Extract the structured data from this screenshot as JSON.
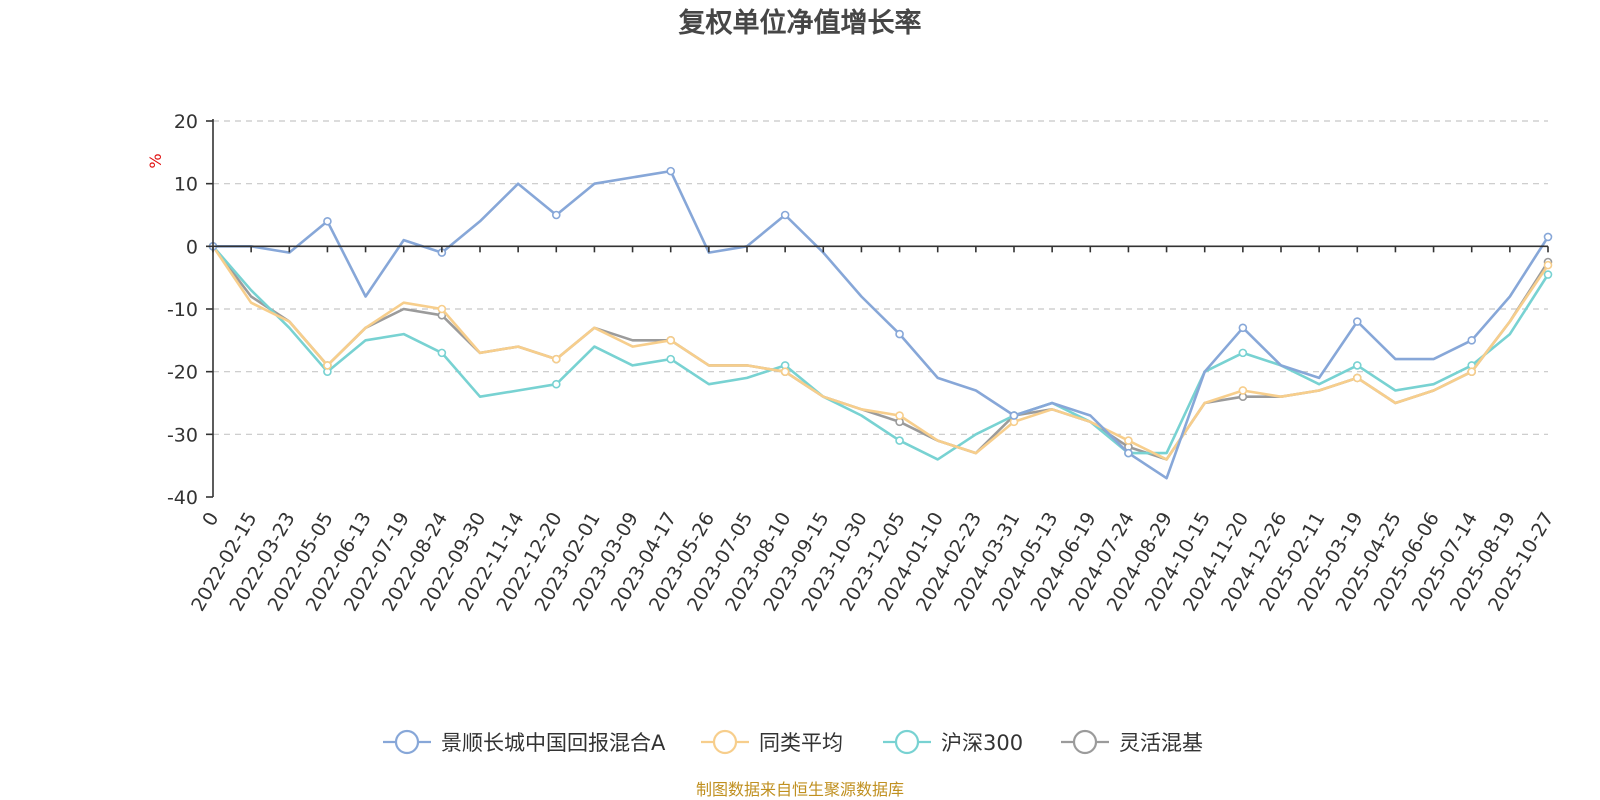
{
  "chart_data": {
    "type": "line",
    "title": "复权单位净值增长率",
    "ylabel": "%",
    "ylim": [
      -40,
      20
    ],
    "yticks": [
      -40,
      -30,
      -20,
      -10,
      0,
      10,
      20
    ],
    "categories": [
      "0",
      "2022-02-15",
      "2022-03-23",
      "2022-05-05",
      "2022-06-13",
      "2022-07-19",
      "2022-08-24",
      "2022-09-30",
      "2022-11-14",
      "2022-12-20",
      "2023-02-01",
      "2023-03-09",
      "2023-04-17",
      "2023-05-26",
      "2023-07-05",
      "2023-08-10",
      "2023-09-15",
      "2023-10-30",
      "2023-12-05",
      "2024-01-10",
      "2024-02-23",
      "2024-03-31",
      "2024-05-13",
      "2024-06-19",
      "2024-07-24",
      "2024-08-29",
      "2024-10-15",
      "2024-11-20",
      "2024-12-26",
      "2025-02-11",
      "2025-03-19",
      "2025-04-25",
      "2025-06-06",
      "2025-07-14",
      "2025-08-19",
      "2025-10-27"
    ],
    "series": [
      {
        "name": "景顺长城中国回报混合A",
        "color": "#87a7d8",
        "values": [
          0,
          0,
          -1,
          4,
          -8,
          1,
          -1,
          4,
          10,
          5,
          10,
          11,
          12,
          -1,
          0,
          5,
          -1,
          -8,
          -14,
          -21,
          -23,
          -27,
          -25,
          -27,
          -33,
          -37,
          -20,
          -13,
          -19,
          -21,
          -12,
          -18,
          -18,
          -15,
          -8,
          1.5
        ]
      },
      {
        "name": "同类平均",
        "color": "#f7ce8c",
        "values": [
          0,
          -9,
          -12,
          -19,
          -13,
          -9,
          -10,
          -17,
          -16,
          -18,
          -13,
          -16,
          -15,
          -19,
          -19,
          -20,
          -24,
          -26,
          -27,
          -31,
          -33,
          -28,
          -26,
          -28,
          -31,
          -34,
          -25,
          -23,
          -24,
          -23,
          -21,
          -25,
          -23,
          -20,
          -12,
          -3
        ]
      },
      {
        "name": "沪深300",
        "color": "#78d2d2",
        "values": [
          0,
          -7,
          -13,
          -20,
          -15,
          -14,
          -17,
          -24,
          -23,
          -22,
          -16,
          -19,
          -18,
          -22,
          -21,
          -19,
          -24,
          -27,
          -31,
          -34,
          -30,
          -27,
          -25,
          -28,
          -33,
          -33,
          -20,
          -17,
          -19,
          -22,
          -19,
          -23,
          -22,
          -19,
          -14,
          -4.5
        ]
      },
      {
        "name": "灵活混基",
        "color": "#9b9b9b",
        "values": [
          0,
          -8,
          -12,
          -19,
          -13,
          -10,
          -11,
          -17,
          -16,
          -18,
          -13,
          -15,
          -15,
          -19,
          -19,
          -20,
          -24,
          -26,
          -28,
          -31,
          -33,
          -27,
          -26,
          -28,
          -32,
          -34,
          -25,
          -24,
          -24,
          -23,
          -21,
          -25,
          -23,
          -20,
          -12,
          -2.5
        ]
      }
    ],
    "legend_position": "bottom-center"
  },
  "source_note": "制图数据来自恒生聚源数据库"
}
